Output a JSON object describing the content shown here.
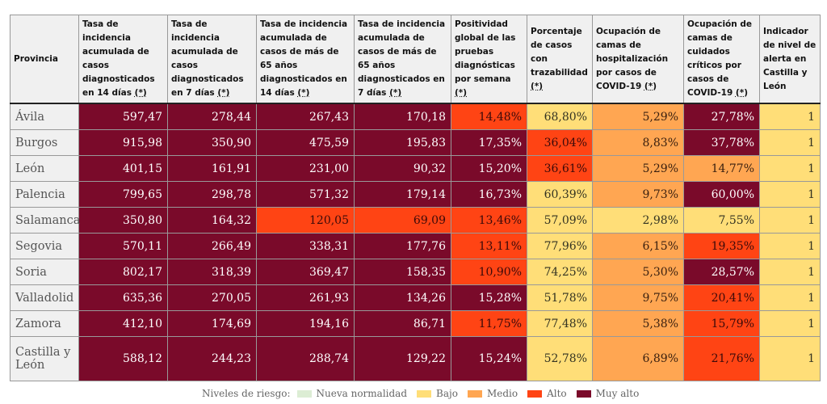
{
  "headers": [
    "Provincia",
    "Tasa de incidencia acumulada de casos diagnosticados en 14 días",
    "Tasa de incidencia acumulada de casos diagnosticados en 7 días",
    "Tasa de incidencia acumulada de casos de más de 65 años diagnosticados en 14 días",
    "Tasa de incidencia acumulada de casos de más de 65 años diagnosticados en 7 días",
    "Positividad global de las pruebas diagnósticas por semana",
    "Porcentaje de casos con trazabilidad",
    "Ocupación de camas de hospitalización por casos de COVID-19",
    "Ocupación de camas de cuidados críticos por casos de COVID-19",
    "Indicador de nivel de alerta en Castilla y León"
  ],
  "asterisk": "(*)",
  "rows": [
    {
      "provincia": "Ávila",
      "values": [
        "597,47",
        "278,44",
        "267,43",
        "170,18",
        "14,48%",
        "68,80%",
        "5,29%",
        "27,78%",
        "1"
      ],
      "levels": [
        4,
        4,
        4,
        4,
        3,
        1,
        2,
        4,
        1
      ]
    },
    {
      "provincia": "Burgos",
      "values": [
        "915,98",
        "350,90",
        "475,59",
        "195,83",
        "17,35%",
        "36,04%",
        "8,83%",
        "37,78%",
        "1"
      ],
      "levels": [
        4,
        4,
        4,
        4,
        4,
        3,
        2,
        4,
        1
      ]
    },
    {
      "provincia": "León",
      "values": [
        "401,15",
        "161,91",
        "231,00",
        "90,32",
        "15,20%",
        "36,61%",
        "5,29%",
        "14,77%",
        "1"
      ],
      "levels": [
        4,
        4,
        4,
        4,
        4,
        3,
        2,
        2,
        1
      ]
    },
    {
      "provincia": "Palencia",
      "values": [
        "799,65",
        "298,78",
        "571,32",
        "179,14",
        "16,73%",
        "60,39%",
        "9,73%",
        "60,00%",
        "1"
      ],
      "levels": [
        4,
        4,
        4,
        4,
        4,
        1,
        2,
        4,
        1
      ]
    },
    {
      "provincia": "Salamanca",
      "values": [
        "350,80",
        "164,32",
        "120,05",
        "69,09",
        "13,46%",
        "57,09%",
        "2,98%",
        "7,55%",
        "1"
      ],
      "levels": [
        4,
        4,
        3,
        3,
        3,
        1,
        1,
        1,
        1
      ]
    },
    {
      "provincia": "Segovia",
      "values": [
        "570,11",
        "266,49",
        "338,31",
        "177,76",
        "13,11%",
        "77,96%",
        "6,15%",
        "19,35%",
        "1"
      ],
      "levels": [
        4,
        4,
        4,
        4,
        3,
        1,
        2,
        3,
        1
      ]
    },
    {
      "provincia": "Soria",
      "values": [
        "802,17",
        "318,39",
        "369,47",
        "158,35",
        "10,90%",
        "74,25%",
        "5,30%",
        "28,57%",
        "1"
      ],
      "levels": [
        4,
        4,
        4,
        4,
        3,
        1,
        2,
        4,
        1
      ]
    },
    {
      "provincia": "Valladolid",
      "values": [
        "635,36",
        "270,05",
        "261,93",
        "134,26",
        "15,28%",
        "51,78%",
        "9,75%",
        "20,41%",
        "1"
      ],
      "levels": [
        4,
        4,
        4,
        4,
        4,
        1,
        2,
        3,
        1
      ]
    },
    {
      "provincia": "Zamora",
      "values": [
        "412,10",
        "174,69",
        "194,16",
        "86,71",
        "11,75%",
        "77,48%",
        "5,38%",
        "15,79%",
        "1"
      ],
      "levels": [
        4,
        4,
        4,
        4,
        3,
        1,
        2,
        3,
        1
      ]
    },
    {
      "provincia": "Castilla y León",
      "values": [
        "588,12",
        "244,23",
        "288,74",
        "129,22",
        "15,24%",
        "52,78%",
        "6,89%",
        "21,76%",
        "1"
      ],
      "levels": [
        4,
        4,
        4,
        4,
        4,
        1,
        2,
        3,
        1
      ]
    }
  ],
  "legend": {
    "title": "Niveles de riesgo:",
    "items": [
      {
        "label": "Nueva normalidad",
        "color": "#dcedd4"
      },
      {
        "label": "Bajo",
        "color": "#ffde78"
      },
      {
        "label": "Medio",
        "color": "#ffa652"
      },
      {
        "label": "Alto",
        "color": "#ff4414"
      },
      {
        "label": "Muy alto",
        "color": "#7a0a2a"
      }
    ]
  }
}
